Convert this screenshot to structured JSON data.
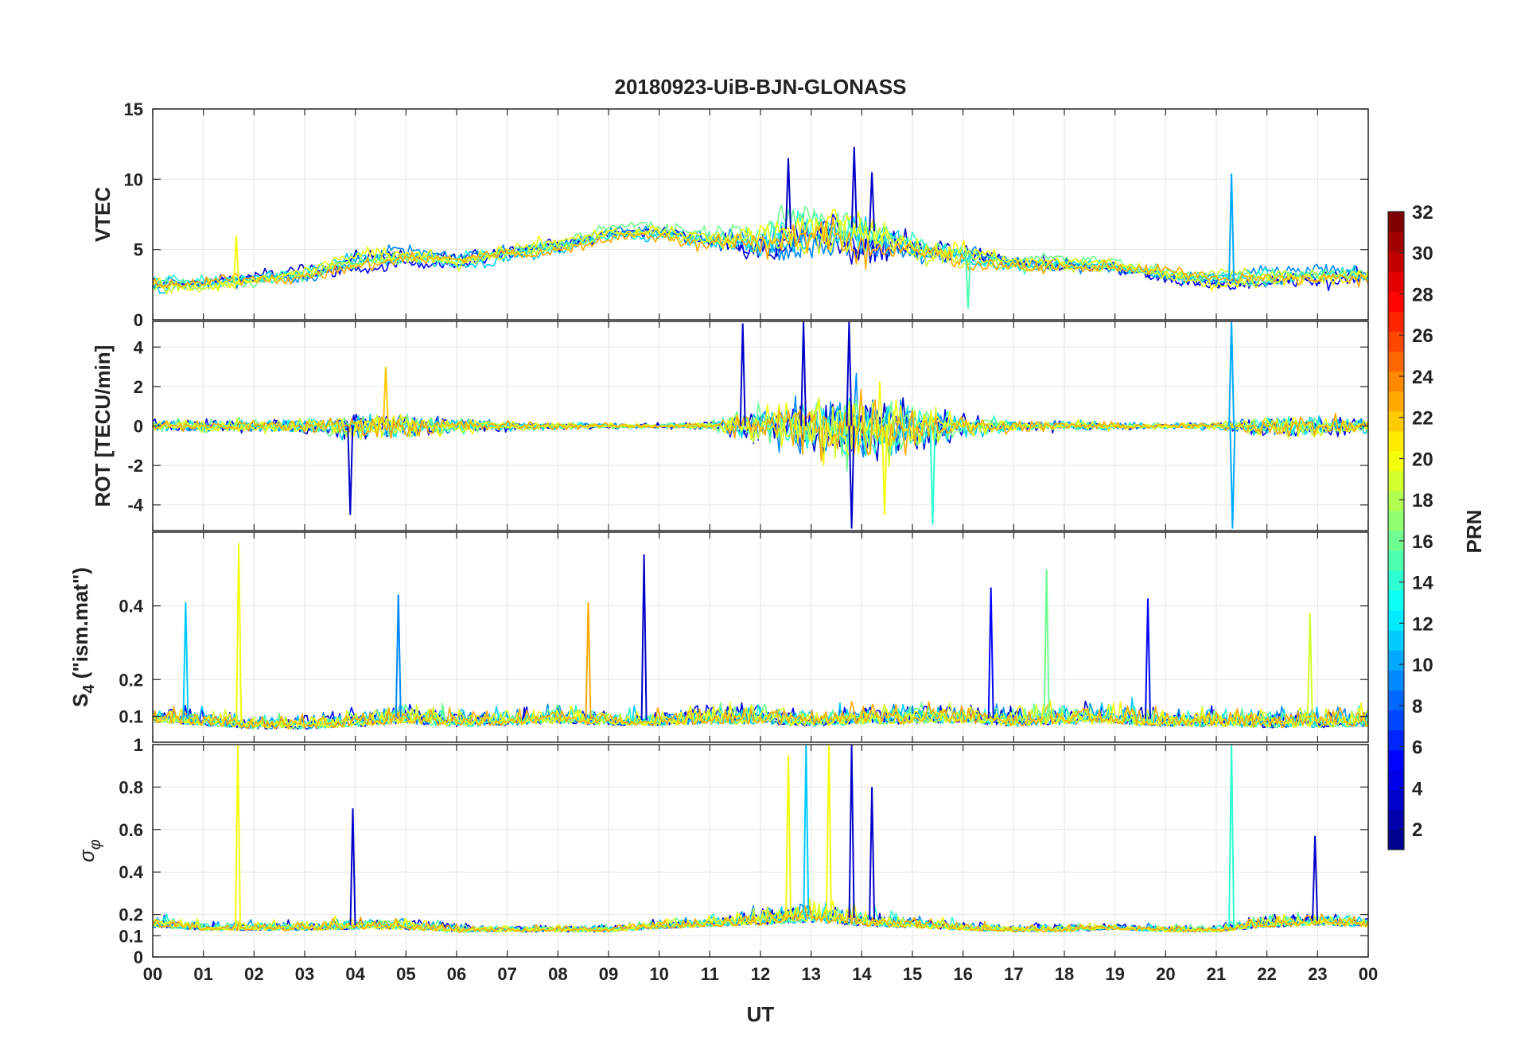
{
  "chart_data": {
    "type": "line",
    "title": "20180923-UiB-BJN-GLONASS",
    "xlabel": "UT",
    "x_ticks": [
      "00",
      "01",
      "02",
      "03",
      "04",
      "05",
      "06",
      "07",
      "08",
      "09",
      "10",
      "11",
      "12",
      "13",
      "14",
      "15",
      "16",
      "17",
      "18",
      "19",
      "20",
      "21",
      "22",
      "23",
      "00"
    ],
    "xlim_hours": [
      0,
      24
    ],
    "colorbar": {
      "label": "PRN",
      "range": [
        1,
        32
      ],
      "ticks": [
        "2",
        "4",
        "6",
        "8",
        "10",
        "12",
        "14",
        "16",
        "18",
        "20",
        "22",
        "24",
        "26",
        "28",
        "30",
        "32"
      ],
      "colormap": "jet",
      "colors": [
        "#00008F",
        "#0000FF",
        "#0080FF",
        "#00FFFF",
        "#80FF80",
        "#FFFF00",
        "#FF8000",
        "#FF0000",
        "#800000"
      ]
    },
    "panels": [
      {
        "id": "vtec",
        "ylabel": "VTEC",
        "ylim": [
          0,
          15
        ],
        "y_ticks": [
          "0",
          "5",
          "10",
          "15"
        ],
        "y_tick_values": [
          0,
          5,
          10,
          15
        ],
        "envelope": {
          "description": "VTEC of all GLONASS PRNs vs UT",
          "hours": [
            0,
            1,
            2,
            3,
            4,
            5,
            6,
            7,
            8,
            9,
            10,
            11,
            12,
            13,
            14,
            15,
            16,
            17,
            18,
            19,
            20,
            21,
            22,
            23,
            24
          ],
          "center": [
            2.5,
            2.5,
            2.8,
            3.2,
            4.2,
            4.5,
            4.2,
            4.8,
            5.2,
            6.0,
            6.2,
            5.8,
            6.0,
            6.8,
            6.5,
            5.5,
            4.8,
            4.2,
            4.0,
            3.8,
            3.2,
            2.8,
            3.0,
            3.0,
            3.0
          ],
          "spread": [
            1.0,
            1.0,
            1.0,
            1.0,
            1.2,
            1.2,
            1.0,
            1.0,
            1.0,
            1.0,
            1.0,
            1.5,
            2.5,
            3.0,
            3.5,
            2.0,
            1.5,
            1.2,
            1.0,
            1.0,
            1.0,
            1.2,
            1.2,
            1.2,
            1.2
          ]
        },
        "spikes": [
          {
            "hour": 1.65,
            "value": 6.0,
            "prn": 20
          },
          {
            "hour": 12.55,
            "value": 11.5,
            "prn": 3
          },
          {
            "hour": 13.85,
            "value": 12.3,
            "prn": 3
          },
          {
            "hour": 14.2,
            "value": 10.5,
            "prn": 3
          },
          {
            "hour": 21.3,
            "value": 10.4,
            "prn": 10
          },
          {
            "hour": 16.1,
            "value": 0.8,
            "prn": 15
          }
        ]
      },
      {
        "id": "rot",
        "ylabel": "ROT [TECU/min]",
        "ylim": [
          -5.3,
          5.3
        ],
        "y_ticks": [
          "-4",
          "-2",
          "0",
          "2",
          "4"
        ],
        "y_tick_values": [
          -4,
          -2,
          0,
          2,
          4
        ],
        "envelope": {
          "description": "Rate of TEC of all GLONASS PRNs vs UT",
          "hours": [
            0,
            1,
            2,
            3,
            4,
            5,
            6,
            7,
            8,
            9,
            10,
            11,
            12,
            13,
            14,
            15,
            16,
            17,
            18,
            19,
            20,
            21,
            22,
            23,
            24
          ],
          "center": [
            0,
            0,
            0,
            0,
            0,
            0,
            0,
            0,
            0,
            0,
            0,
            0,
            0,
            0,
            0,
            0,
            0,
            0,
            0,
            0,
            0,
            0,
            0,
            0,
            0
          ],
          "spread": [
            0.4,
            0.5,
            0.5,
            0.6,
            1.0,
            1.0,
            0.6,
            0.4,
            0.3,
            0.2,
            0.2,
            0.3,
            1.5,
            2.5,
            3.0,
            2.0,
            0.8,
            0.5,
            0.4,
            0.3,
            0.2,
            0.3,
            0.8,
            0.8,
            0.6
          ]
        },
        "spikes": [
          {
            "hour": 3.9,
            "value": -4.5,
            "prn": 3
          },
          {
            "hour": 4.6,
            "value": 3.0,
            "prn": 22
          },
          {
            "hour": 11.65,
            "value": 5.2,
            "prn": 3
          },
          {
            "hour": 12.85,
            "value": 5.3,
            "prn": 3
          },
          {
            "hour": 13.8,
            "value": -5.2,
            "prn": 3
          },
          {
            "hour": 13.75,
            "value": 5.3,
            "prn": 3
          },
          {
            "hour": 14.45,
            "value": -4.5,
            "prn": 20
          },
          {
            "hour": 15.4,
            "value": -5.0,
            "prn": 14
          },
          {
            "hour": 21.3,
            "value": 5.3,
            "prn": 10
          },
          {
            "hour": 21.32,
            "value": -5.2,
            "prn": 10
          }
        ]
      },
      {
        "id": "s4",
        "ylabel": "S",
        "ylabel_sub": "4",
        "ylabel_suffix": " (\"ism.mat\")",
        "ylim": [
          0.03,
          0.6
        ],
        "y_ticks": [
          "0.1",
          "0.2",
          "0.4"
        ],
        "y_tick_values": [
          0.1,
          0.2,
          0.4
        ],
        "envelope": {
          "description": "S4 amplitude scintillation index of all GLONASS PRNs vs UT",
          "hours": [
            0,
            1,
            2,
            3,
            4,
            5,
            6,
            7,
            8,
            9,
            10,
            11,
            12,
            13,
            14,
            15,
            16,
            17,
            18,
            19,
            20,
            21,
            22,
            23,
            24
          ],
          "center": [
            0.1,
            0.09,
            0.08,
            0.08,
            0.09,
            0.1,
            0.09,
            0.09,
            0.1,
            0.09,
            0.09,
            0.1,
            0.1,
            0.09,
            0.1,
            0.1,
            0.1,
            0.09,
            0.1,
            0.1,
            0.09,
            0.09,
            0.09,
            0.09,
            0.09
          ],
          "spread": [
            0.06,
            0.05,
            0.05,
            0.05,
            0.06,
            0.07,
            0.06,
            0.05,
            0.06,
            0.05,
            0.05,
            0.07,
            0.07,
            0.06,
            0.07,
            0.07,
            0.06,
            0.06,
            0.07,
            0.07,
            0.06,
            0.06,
            0.07,
            0.07,
            0.06
          ]
        },
        "spikes": [
          {
            "hour": 0.65,
            "value": 0.41,
            "prn": 11
          },
          {
            "hour": 1.7,
            "value": 0.57,
            "prn": 20
          },
          {
            "hour": 4.85,
            "value": 0.43,
            "prn": 9
          },
          {
            "hour": 8.6,
            "value": 0.41,
            "prn": 23
          },
          {
            "hour": 9.7,
            "value": 0.54,
            "prn": 3
          },
          {
            "hour": 16.55,
            "value": 0.45,
            "prn": 5
          },
          {
            "hour": 17.65,
            "value": 0.5,
            "prn": 16
          },
          {
            "hour": 19.65,
            "value": 0.42,
            "prn": 5
          },
          {
            "hour": 22.85,
            "value": 0.38,
            "prn": 19
          }
        ]
      },
      {
        "id": "sigma_phi",
        "ylabel": "σ",
        "ylabel_sub": "φ",
        "ylim": [
          0,
          1
        ],
        "y_ticks": [
          "0",
          "0.1",
          "0.2",
          "0.4",
          "0.6",
          "0.8",
          "1"
        ],
        "y_tick_values": [
          0,
          0.1,
          0.2,
          0.4,
          0.6,
          0.8,
          1
        ],
        "envelope": {
          "description": "Phase scintillation index sigma-phi of all GLONASS PRNs vs UT",
          "hours": [
            0,
            1,
            2,
            3,
            4,
            5,
            6,
            7,
            8,
            9,
            10,
            11,
            12,
            13,
            14,
            15,
            16,
            17,
            18,
            19,
            20,
            21,
            22,
            23,
            24
          ],
          "center": [
            0.16,
            0.14,
            0.14,
            0.14,
            0.15,
            0.15,
            0.13,
            0.13,
            0.13,
            0.13,
            0.15,
            0.16,
            0.18,
            0.2,
            0.18,
            0.16,
            0.14,
            0.13,
            0.13,
            0.14,
            0.13,
            0.13,
            0.16,
            0.17,
            0.16
          ],
          "spread": [
            0.07,
            0.05,
            0.05,
            0.05,
            0.07,
            0.07,
            0.05,
            0.04,
            0.04,
            0.04,
            0.06,
            0.06,
            0.1,
            0.12,
            0.12,
            0.08,
            0.05,
            0.04,
            0.04,
            0.04,
            0.04,
            0.04,
            0.07,
            0.07,
            0.06
          ]
        },
        "spikes": [
          {
            "hour": 1.68,
            "value": 1.0,
            "prn": 20
          },
          {
            "hour": 3.95,
            "value": 0.7,
            "prn": 3
          },
          {
            "hour": 12.55,
            "value": 0.95,
            "prn": 20
          },
          {
            "hour": 12.9,
            "value": 1.0,
            "prn": 11
          },
          {
            "hour": 13.35,
            "value": 1.0,
            "prn": 20
          },
          {
            "hour": 13.8,
            "value": 1.0,
            "prn": 3
          },
          {
            "hour": 14.2,
            "value": 0.8,
            "prn": 3
          },
          {
            "hour": 21.3,
            "value": 1.0,
            "prn": 14
          },
          {
            "hour": 22.95,
            "value": 0.57,
            "prn": 3
          }
        ]
      }
    ]
  }
}
